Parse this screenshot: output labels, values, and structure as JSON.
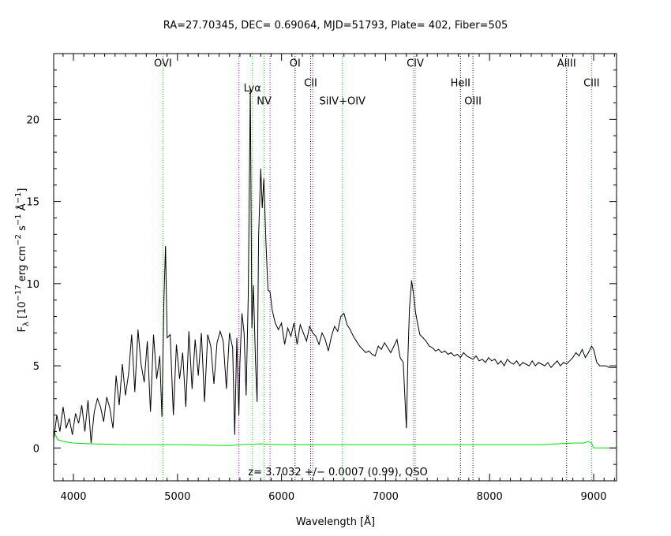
{
  "chart_data": {
    "type": "line",
    "title": "RA=27.70345, DEC= 0.69064, MJD=51793, Plate= 402, Fiber=505",
    "xlabel": "Wavelength [Å]",
    "ylabel_parts": [
      "F",
      "λ",
      " [10",
      "−17",
      " erg cm",
      "−2",
      " s",
      "−1",
      " Å",
      "−1",
      "]"
    ],
    "annotation": "z= 3.7032 +/− 0.0007 (0.99), QSO",
    "xlim": [
      3810,
      9220
    ],
    "ylim": [
      -2,
      24
    ],
    "xticks": [
      4000,
      5000,
      6000,
      7000,
      8000,
      9000
    ],
    "yticks": [
      0,
      5,
      10,
      15,
      20
    ],
    "colors": {
      "flux": "#000000",
      "error": "#00e000",
      "line_green": "#00cc00",
      "line_magenta": "#cc00cc",
      "line_black": "#000000"
    },
    "lines": [
      {
        "name": "OVI",
        "x": 4860,
        "color": "green",
        "label_y": 23.2
      },
      {
        "name": "Lyα",
        "x": 5720,
        "color": "green",
        "label_y": 21.7
      },
      {
        "name": "NV",
        "x": 5833,
        "color": "green",
        "label_y": 20.9
      },
      {
        "name": "OI",
        "x": 6130,
        "color": "black",
        "label_y": 23.2
      },
      {
        "name": "CII",
        "x": 6280,
        "color": "black",
        "label_y": 22.0
      },
      {
        "name": "SiIV+OIV",
        "x": 6585,
        "color": "green",
        "label_y": 20.9
      },
      {
        "name": "CIV",
        "x": 7285,
        "color": "green",
        "label_y": 23.2
      },
      {
        "name": "HeII",
        "x": 7720,
        "color": "black",
        "label_y": 22.0
      },
      {
        "name": "OIII",
        "x": 7840,
        "color": "black",
        "label_y": 20.9
      },
      {
        "name": "AlIII",
        "x": 8740,
        "color": "black",
        "label_y": 23.2
      },
      {
        "name": "CIII",
        "x": 8980,
        "color": "green",
        "label_y": 22.0
      }
    ],
    "magenta_lines": [
      5590,
      5890,
      6300,
      7270
    ],
    "flux": {
      "x": [
        3810,
        3840,
        3870,
        3900,
        3930,
        3960,
        3990,
        4020,
        4050,
        4080,
        4110,
        4140,
        4170,
        4200,
        4230,
        4260,
        4290,
        4320,
        4350,
        4380,
        4410,
        4440,
        4470,
        4500,
        4530,
        4560,
        4590,
        4620,
        4650,
        4680,
        4710,
        4740,
        4770,
        4800,
        4830,
        4850,
        4870,
        4885,
        4900,
        4930,
        4960,
        4990,
        5020,
        5050,
        5080,
        5110,
        5140,
        5170,
        5200,
        5230,
        5260,
        5290,
        5320,
        5350,
        5380,
        5410,
        5440,
        5470,
        5500,
        5530,
        5550,
        5570,
        5590,
        5600,
        5620,
        5640,
        5660,
        5680,
        5700,
        5715,
        5730,
        5750,
        5765,
        5780,
        5800,
        5815,
        5830,
        5850,
        5870,
        5890,
        5910,
        5940,
        5970,
        6000,
        6030,
        6060,
        6090,
        6120,
        6150,
        6180,
        6210,
        6240,
        6270,
        6300,
        6330,
        6360,
        6390,
        6420,
        6450,
        6480,
        6510,
        6540,
        6570,
        6600,
        6630,
        6660,
        6690,
        6720,
        6750,
        6780,
        6810,
        6840,
        6870,
        6900,
        6930,
        6960,
        6990,
        7020,
        7050,
        7080,
        7110,
        7140,
        7170,
        7200,
        7215,
        7230,
        7250,
        7270,
        7290,
        7310,
        7330,
        7360,
        7390,
        7420,
        7450,
        7480,
        7510,
        7540,
        7570,
        7600,
        7630,
        7660,
        7690,
        7720,
        7750,
        7780,
        7810,
        7840,
        7870,
        7900,
        7930,
        7960,
        7990,
        8020,
        8050,
        8080,
        8110,
        8140,
        8170,
        8200,
        8230,
        8260,
        8290,
        8320,
        8350,
        8380,
        8410,
        8440,
        8470,
        8500,
        8530,
        8560,
        8590,
        8620,
        8650,
        8680,
        8710,
        8740,
        8770,
        8800,
        8830,
        8860,
        8890,
        8920,
        8950,
        8980,
        9000,
        9030,
        9060,
        9090,
        9120,
        9150,
        9180,
        9220
      ],
      "y": [
        0.5,
        2.0,
        1.0,
        2.5,
        1.2,
        1.8,
        0.8,
        2.1,
        1.5,
        2.6,
        1.0,
        2.9,
        0.3,
        2.2,
        3.0,
        2.5,
        1.6,
        3.1,
        2.4,
        1.2,
        4.4,
        2.6,
        5.1,
        3.2,
        4.5,
        6.9,
        3.4,
        7.2,
        5.1,
        4.0,
        6.5,
        2.2,
        6.9,
        4.2,
        5.6,
        1.9,
        9.1,
        12.3,
        6.7,
        6.9,
        2.0,
        6.3,
        4.2,
        5.8,
        2.5,
        7.1,
        3.6,
        6.6,
        4.4,
        7.0,
        2.8,
        6.9,
        6.2,
        3.9,
        6.4,
        7.1,
        6.5,
        3.6,
        7.0,
        6.1,
        0.8,
        6.7,
        2.0,
        5.2,
        8.2,
        7.0,
        3.2,
        9.3,
        21.9,
        7.3,
        9.9,
        5.2,
        2.8,
        12.9,
        17.0,
        14.6,
        16.4,
        12.5,
        9.6,
        9.5,
        8.4,
        7.6,
        7.2,
        7.6,
        6.3,
        7.3,
        6.8,
        7.6,
        6.3,
        7.5,
        7.0,
        6.5,
        7.4,
        7.0,
        6.8,
        6.3,
        7.0,
        6.6,
        5.9,
        6.8,
        7.4,
        7.1,
        8.0,
        8.2,
        7.5,
        7.2,
        6.8,
        6.5,
        6.2,
        6.0,
        5.8,
        5.9,
        5.7,
        5.6,
        6.2,
        6.0,
        6.4,
        6.1,
        5.8,
        6.2,
        6.6,
        5.5,
        5.2,
        1.2,
        5.6,
        8.5,
        10.2,
        9.3,
        8.2,
        7.5,
        6.9,
        6.7,
        6.5,
        6.2,
        6.1,
        5.9,
        6.0,
        5.8,
        5.9,
        5.7,
        5.8,
        5.6,
        5.7,
        5.5,
        5.8,
        5.6,
        5.5,
        5.4,
        5.6,
        5.3,
        5.4,
        5.2,
        5.5,
        5.3,
        5.4,
        5.1,
        5.3,
        5.0,
        5.4,
        5.2,
        5.1,
        5.3,
        5.0,
        5.2,
        5.1,
        5.0,
        5.3,
        5.0,
        5.2,
        5.1,
        5.0,
        5.2,
        4.9,
        5.1,
        5.3,
        5.0,
        5.2,
        5.1,
        5.3,
        5.5,
        5.8,
        5.6,
        6.0,
        5.5,
        5.8,
        6.2,
        6.0,
        5.2,
        5.0,
        5.0,
        5.0,
        4.9,
        4.9,
        4.9
      ]
    },
    "error": {
      "x": [
        3810,
        3850,
        3900,
        4000,
        4200,
        4500,
        4800,
        5000,
        5500,
        5600,
        5800,
        6000,
        6500,
        7000,
        7500,
        8000,
        8500,
        8800,
        8900,
        8950,
        8980,
        9000,
        9220
      ],
      "y": [
        1.0,
        0.5,
        0.4,
        0.3,
        0.25,
        0.2,
        0.2,
        0.2,
        0.15,
        0.2,
        0.25,
        0.2,
        0.2,
        0.2,
        0.2,
        0.2,
        0.2,
        0.3,
        0.3,
        0.4,
        0.3,
        0.0,
        0.0
      ]
    }
  }
}
